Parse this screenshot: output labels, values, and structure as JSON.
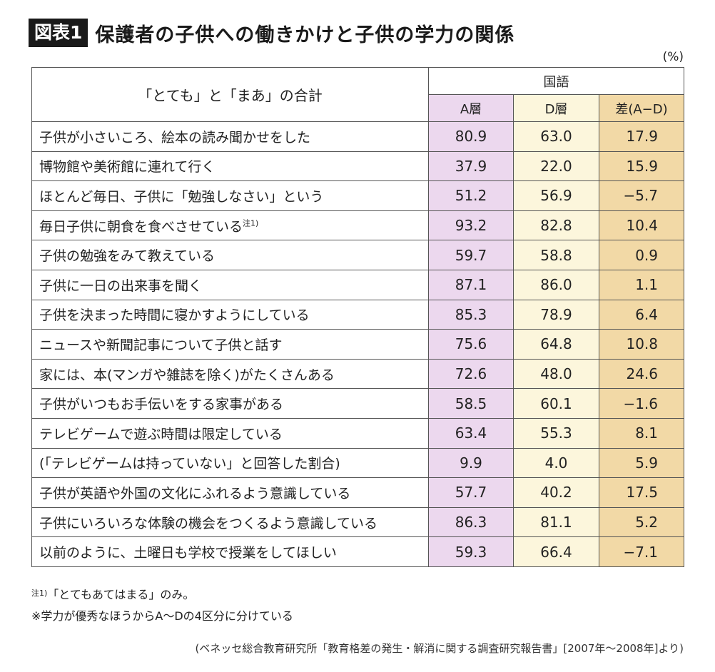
{
  "title": {
    "badge": "図表1",
    "text": "保護者の子供への働きかけと子供の学力の関係"
  },
  "unit": "(%)",
  "chart_data": {
    "type": "table",
    "row_header": "「とても」と「まあ」の合計",
    "group_header": "国語",
    "columns": [
      "A層",
      "D層",
      "差(A−D)"
    ],
    "rows": [
      {
        "label": "子供が小さいころ、絵本の読み聞かせをした",
        "note": "",
        "a": "80.9",
        "d": "63.0",
        "diff": "17.9"
      },
      {
        "label": "博物館や美術館に連れて行く",
        "note": "",
        "a": "37.9",
        "d": "22.0",
        "diff": "15.9"
      },
      {
        "label": "ほとんど毎日、子供に「勉強しなさい」という",
        "note": "",
        "a": "51.2",
        "d": "56.9",
        "diff": "−5.7"
      },
      {
        "label": "毎日子供に朝食を食べさせている",
        "note": "注1)",
        "a": "93.2",
        "d": "82.8",
        "diff": "10.4"
      },
      {
        "label": "子供の勉強をみて教えている",
        "note": "",
        "a": "59.7",
        "d": "58.8",
        "diff": "0.9"
      },
      {
        "label": "子供に一日の出来事を聞く",
        "note": "",
        "a": "87.1",
        "d": "86.0",
        "diff": "1.1"
      },
      {
        "label": "子供を決まった時間に寝かすようにしている",
        "note": "",
        "a": "85.3",
        "d": "78.9",
        "diff": "6.4"
      },
      {
        "label": "ニュースや新聞記事について子供と話す",
        "note": "",
        "a": "75.6",
        "d": "64.8",
        "diff": "10.8"
      },
      {
        "label": "家には、本(マンガや雑誌を除く)がたくさんある",
        "note": "",
        "a": "72.6",
        "d": "48.0",
        "diff": "24.6"
      },
      {
        "label": "子供がいつもお手伝いをする家事がある",
        "note": "",
        "a": "58.5",
        "d": "60.1",
        "diff": "−1.6"
      },
      {
        "label": "テレビゲームで遊ぶ時間は限定している",
        "note": "",
        "a": "63.4",
        "d": "55.3",
        "diff": "8.1"
      },
      {
        "label": "(「テレビゲームは持っていない」と回答した割合)",
        "note": "",
        "a": "9.9",
        "d": "4.0",
        "diff": "5.9"
      },
      {
        "label": "子供が英語や外国の文化にふれるよう意識している",
        "note": "",
        "a": "57.7",
        "d": "40.2",
        "diff": "17.5"
      },
      {
        "label": "子供にいろいろな体験の機会をつくるよう意識している",
        "note": "",
        "a": "86.3",
        "d": "81.1",
        "diff": "5.2"
      },
      {
        "label": "以前のように、土曜日も学校で授業をしてほしい",
        "note": "",
        "a": "59.3",
        "d": "66.4",
        "diff": "−7.1"
      }
    ]
  },
  "notes": {
    "note1_mark": "注1)",
    "note1_text": "「とてもあてはまる」のみ。",
    "note2": "※学力が優秀なほうからA〜Dの4区分に分けている"
  },
  "source": "(ベネッセ総合教育研究所「教育格差の発生・解消に関する調査研究報告書」[2007年〜2008年]より)",
  "colors": {
    "a_column": "#ecd8ee",
    "d_column": "#fcf6dc",
    "diff_column": "#f2d9a6",
    "badge_bg": "#1a1a1a"
  }
}
